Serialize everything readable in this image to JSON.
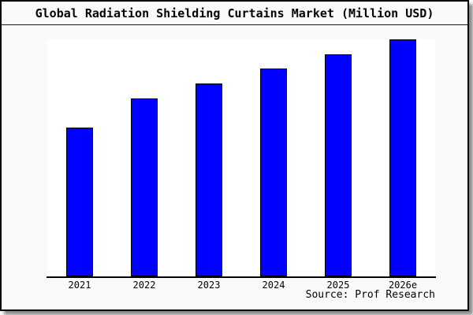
{
  "window": {
    "background_color": "#fafafa",
    "plot_background_color": "#ffffff",
    "border_color": "#000000",
    "shadow_color": "#999999"
  },
  "header": {
    "title": "Global Radiation Shielding Curtains Market (Million USD)"
  },
  "chart_data": {
    "type": "bar",
    "title": "Global Radiation Shielding Curtains Market (Million USD)",
    "categories": [
      "2021",
      "2022",
      "2023",
      "2024",
      "2025",
      "2026e"
    ],
    "values": [
      62.8,
      75.1,
      81.4,
      87.7,
      93.7,
      100
    ],
    "values_unit": "percent of tallest bar (2026e); y-axis is unlabeled in the image",
    "xlabel": "",
    "ylabel": "",
    "ylim": [
      0,
      100
    ],
    "grid": false,
    "legend": false,
    "bar_color": "#0000ff",
    "bar_border_color": "#000000"
  },
  "footer": {
    "source": "Source: Prof Research"
  }
}
